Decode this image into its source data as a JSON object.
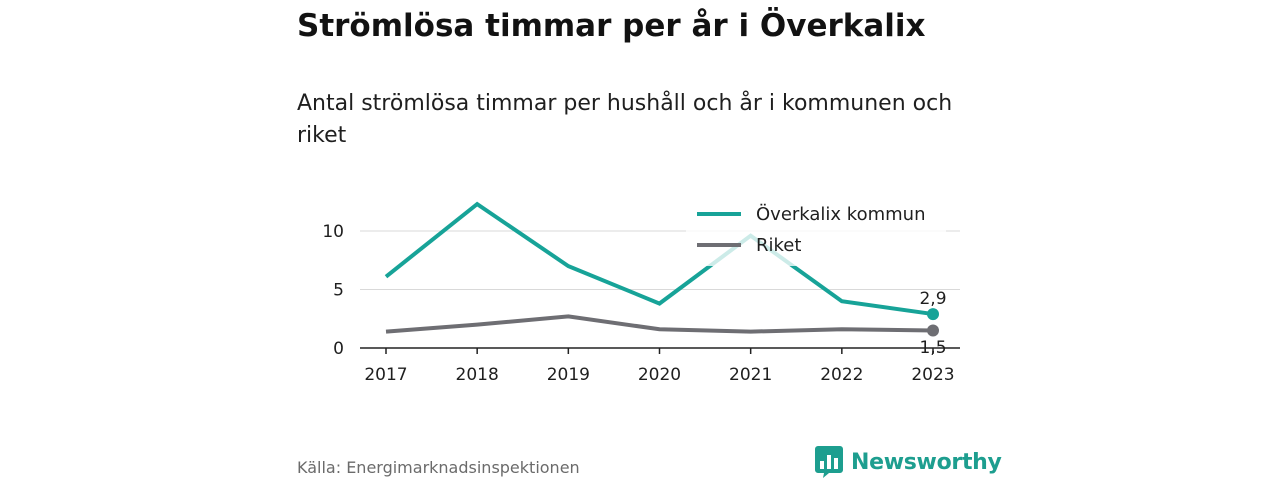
{
  "header": {
    "title": "Strömlösa timmar per år i Överkalix",
    "subtitle": "Antal strömlösa timmar per hushåll och år i kommunen och riket"
  },
  "footer": {
    "source": "Källa: Energimarknadsinspektionen",
    "brand": "Newsworthy",
    "brand_icon": "bar-chart-logo-icon",
    "brand_color": "#1d9e8f"
  },
  "chart_data": {
    "type": "line",
    "title": "Strömlösa timmar per år i Överkalix",
    "subtitle": "Antal strömlösa timmar per hushåll och år i kommunen och riket",
    "xlabel": "",
    "ylabel": "",
    "x": [
      "2017",
      "2018",
      "2019",
      "2020",
      "2021",
      "2022",
      "2023"
    ],
    "ylim": [
      0,
      12.5
    ],
    "yticks": [
      0,
      5,
      10
    ],
    "grid": "horizontal",
    "legend_position": "top-right",
    "series": [
      {
        "name": "Överkalix kommun",
        "color": "#17a398",
        "values": [
          6.1,
          12.3,
          7.0,
          3.8,
          9.6,
          4.0,
          2.9
        ],
        "end_label": "2,9"
      },
      {
        "name": "Riket",
        "color": "#6e6e73",
        "values": [
          1.4,
          2.0,
          2.7,
          1.6,
          1.4,
          1.6,
          1.5
        ],
        "end_label": "1,5"
      }
    ]
  }
}
